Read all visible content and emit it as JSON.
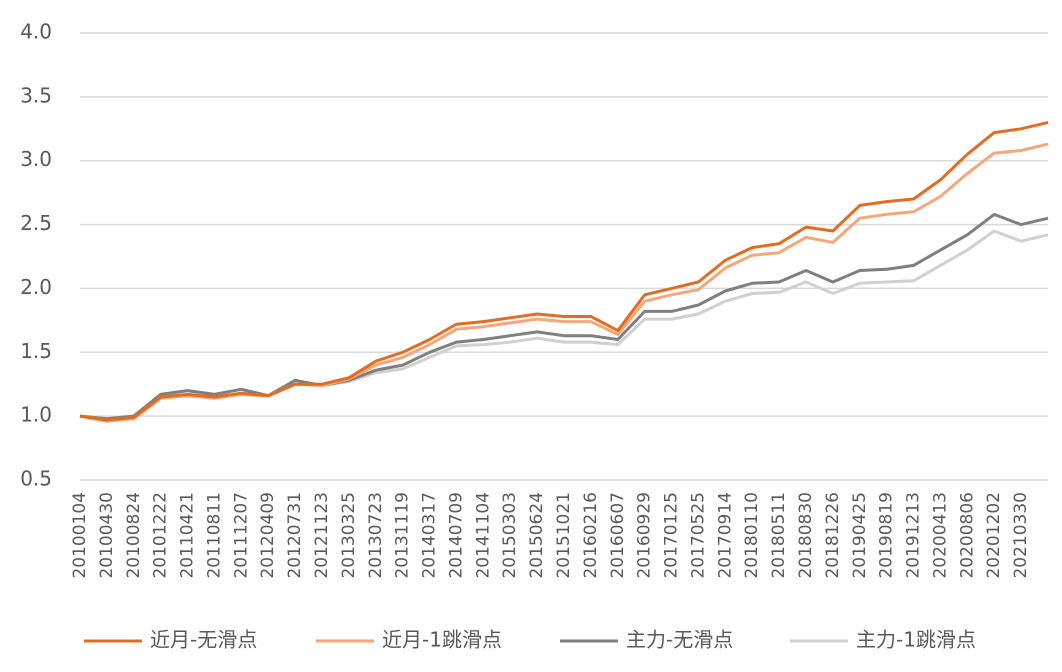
{
  "chart_data": {
    "type": "line",
    "categories": [
      "20100104",
      "20100430",
      "20100824",
      "20101222",
      "20110421",
      "20110811",
      "20111207",
      "20120409",
      "20120731",
      "20121123",
      "20130325",
      "20130723",
      "20131119",
      "20140317",
      "20140709",
      "20141104",
      "20150303",
      "20150624",
      "20151021",
      "20160216",
      "20160607",
      "20160929",
      "20170125",
      "20170525",
      "20170914",
      "20180110",
      "20180511",
      "20180830",
      "20181226",
      "20190425",
      "20190819",
      "20191213",
      "20200413",
      "20200806",
      "20201202",
      "20210330",
      null
    ],
    "series": [
      {
        "name": "近月-无滑点",
        "color": "#e46c21",
        "values": [
          1.0,
          0.97,
          0.99,
          1.15,
          1.17,
          1.15,
          1.18,
          1.16,
          1.25,
          1.25,
          1.3,
          1.43,
          1.5,
          1.6,
          1.72,
          1.74,
          1.77,
          1.8,
          1.78,
          1.78,
          1.67,
          1.95,
          2.0,
          2.05,
          2.22,
          2.32,
          2.35,
          2.48,
          2.45,
          2.65,
          2.68,
          2.7,
          2.85,
          3.05,
          3.22,
          3.25,
          3.3
        ]
      },
      {
        "name": "近月-1跳滑点",
        "color": "#f4a77a",
        "values": [
          1.0,
          0.96,
          0.98,
          1.14,
          1.16,
          1.14,
          1.17,
          1.16,
          1.25,
          1.24,
          1.29,
          1.4,
          1.46,
          1.56,
          1.68,
          1.7,
          1.73,
          1.76,
          1.74,
          1.74,
          1.64,
          1.9,
          1.95,
          1.99,
          2.16,
          2.26,
          2.28,
          2.4,
          2.36,
          2.55,
          2.58,
          2.6,
          2.72,
          2.9,
          3.06,
          3.08,
          3.13
        ]
      },
      {
        "name": "主力-无滑点",
        "color": "#7f7f7f",
        "values": [
          1.0,
          0.98,
          1.0,
          1.17,
          1.2,
          1.17,
          1.21,
          1.16,
          1.28,
          1.24,
          1.28,
          1.36,
          1.4,
          1.5,
          1.58,
          1.6,
          1.63,
          1.66,
          1.63,
          1.63,
          1.6,
          1.82,
          1.82,
          1.87,
          1.98,
          2.04,
          2.05,
          2.14,
          2.05,
          2.14,
          2.15,
          2.18,
          2.3,
          2.42,
          2.58,
          2.5,
          2.55
        ]
      },
      {
        "name": "主力-1跳滑点",
        "color": "#d0d0d0",
        "values": [
          1.0,
          0.98,
          1.0,
          1.17,
          1.2,
          1.17,
          1.21,
          1.16,
          1.28,
          1.24,
          1.27,
          1.34,
          1.37,
          1.46,
          1.55,
          1.56,
          1.58,
          1.61,
          1.58,
          1.58,
          1.56,
          1.76,
          1.76,
          1.8,
          1.9,
          1.96,
          1.97,
          2.05,
          1.96,
          2.04,
          2.05,
          2.06,
          2.18,
          2.3,
          2.45,
          2.37,
          2.42
        ]
      }
    ],
    "ylim": [
      0.5,
      4.0
    ],
    "yticks": [
      0.5,
      {
        "value": 1.0,
        "label": "1.0"
      },
      1.5,
      {
        "value": 2.0,
        "label": "2.0"
      },
      2.5,
      {
        "value": 3.0,
        "label": "3.0"
      },
      3.5,
      {
        "value": 4.0,
        "label": "4.0"
      }
    ],
    "grid": true,
    "legend": "bottom"
  }
}
